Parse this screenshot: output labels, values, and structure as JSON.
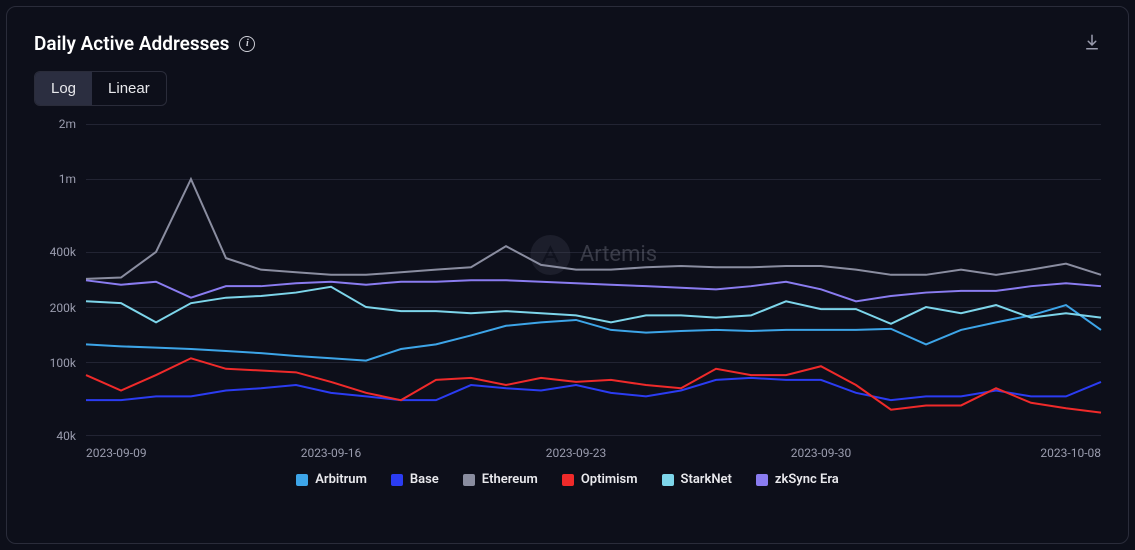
{
  "title": "Daily Active Addresses",
  "watermark": "Artemis",
  "controls": {
    "scale_options": [
      "Log",
      "Linear"
    ],
    "active": "Log"
  },
  "chart": {
    "type": "line",
    "background_color": "#0d0f1a",
    "grid_color": "#222433",
    "axis_color": "#33354a",
    "label_color": "#9a9cae",
    "label_fontsize": 12,
    "line_width": 2,
    "yaxis": {
      "scale": "log",
      "min": 40000,
      "max": 2000000,
      "ticks": [
        {
          "value": 40000,
          "label": "40k"
        },
        {
          "value": 100000,
          "label": "100k"
        },
        {
          "value": 200000,
          "label": "200k"
        },
        {
          "value": 400000,
          "label": "400k"
        },
        {
          "value": 1000000,
          "label": "1m"
        },
        {
          "value": 2000000,
          "label": "2m"
        }
      ]
    },
    "xaxis": {
      "dates": [
        "2023-09-09",
        "2023-09-10",
        "2023-09-11",
        "2023-09-12",
        "2023-09-13",
        "2023-09-14",
        "2023-09-15",
        "2023-09-16",
        "2023-09-17",
        "2023-09-18",
        "2023-09-19",
        "2023-09-20",
        "2023-09-21",
        "2023-09-22",
        "2023-09-23",
        "2023-09-24",
        "2023-09-25",
        "2023-09-26",
        "2023-09-27",
        "2023-09-28",
        "2023-09-29",
        "2023-09-30",
        "2023-10-01",
        "2023-10-02",
        "2023-10-03",
        "2023-10-04",
        "2023-10-05",
        "2023-10-06",
        "2023-10-07",
        "2023-10-08"
      ],
      "tick_labels": [
        {
          "index": 0,
          "label": "2023-09-09"
        },
        {
          "index": 7,
          "label": "2023-09-16"
        },
        {
          "index": 14,
          "label": "2023-09-23"
        },
        {
          "index": 21,
          "label": "2023-09-30"
        },
        {
          "index": 29,
          "label": "2023-10-08"
        }
      ]
    },
    "series": [
      {
        "name": "Arbitrum",
        "color": "#3da5e8",
        "values": [
          125000,
          122000,
          120000,
          118000,
          115000,
          112000,
          108000,
          105000,
          102000,
          118000,
          125000,
          140000,
          158000,
          165000,
          170000,
          150000,
          145000,
          148000,
          150000,
          148000,
          150000,
          150000,
          150000,
          152000,
          125000,
          150000,
          165000,
          180000,
          205000,
          150000
        ]
      },
      {
        "name": "Base",
        "color": "#2b3cf2",
        "values": [
          62000,
          62000,
          65000,
          65000,
          70000,
          72000,
          75000,
          68000,
          65000,
          62000,
          62000,
          75000,
          72000,
          70000,
          75000,
          68000,
          65000,
          70000,
          80000,
          82000,
          80000,
          80000,
          68000,
          62000,
          65000,
          65000,
          70000,
          65000,
          65000,
          78000
        ]
      },
      {
        "name": "Ethereum",
        "color": "#8a8da0",
        "values": [
          285000,
          290000,
          400000,
          1000000,
          370000,
          320000,
          310000,
          300000,
          300000,
          310000,
          320000,
          330000,
          430000,
          340000,
          320000,
          320000,
          330000,
          335000,
          330000,
          330000,
          335000,
          335000,
          320000,
          300000,
          300000,
          320000,
          300000,
          320000,
          345000,
          300000
        ]
      },
      {
        "name": "Optimism",
        "color": "#ef2a2a",
        "values": [
          85000,
          70000,
          85000,
          105000,
          92000,
          90000,
          88000,
          78000,
          68000,
          62000,
          80000,
          82000,
          75000,
          82000,
          78000,
          80000,
          75000,
          72000,
          92000,
          85000,
          85000,
          95000,
          75000,
          55000,
          58000,
          58000,
          72000,
          60000,
          56000,
          53000
        ]
      },
      {
        "name": "StarkNet",
        "color": "#7dd5ea",
        "values": [
          215000,
          210000,
          165000,
          210000,
          225000,
          230000,
          240000,
          258000,
          200000,
          190000,
          190000,
          185000,
          190000,
          185000,
          180000,
          165000,
          180000,
          180000,
          175000,
          180000,
          215000,
          195000,
          195000,
          162000,
          200000,
          185000,
          205000,
          175000,
          185000,
          175000
        ]
      },
      {
        "name": "zkSync Era",
        "color": "#8a7cf0",
        "values": [
          280000,
          265000,
          275000,
          225000,
          260000,
          260000,
          270000,
          275000,
          265000,
          275000,
          275000,
          280000,
          280000,
          275000,
          270000,
          265000,
          260000,
          255000,
          250000,
          260000,
          275000,
          250000,
          215000,
          230000,
          240000,
          245000,
          245000,
          260000,
          270000,
          260000
        ]
      }
    ]
  }
}
